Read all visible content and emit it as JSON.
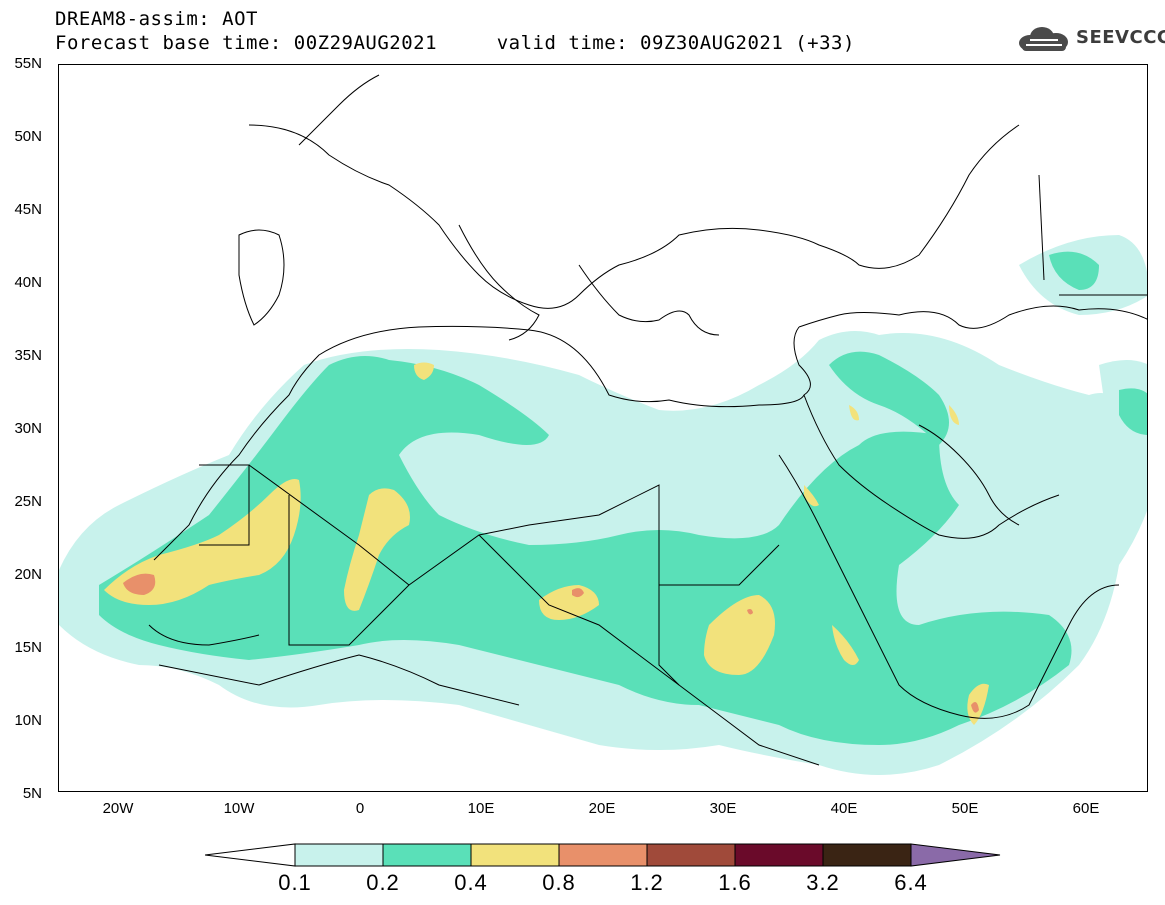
{
  "header": {
    "title_line1": "DREAM8-assim: AOT",
    "title_line2": "Forecast base time: 00Z29AUG2021     valid time: 09Z30AUG2021 (+33)",
    "logo_text": "SEEVCCC"
  },
  "map": {
    "lat_labels": [
      "55N",
      "50N",
      "45N",
      "40N",
      "35N",
      "30N",
      "25N",
      "20N",
      "15N",
      "10N",
      "5N"
    ],
    "lon_labels": [
      "20W",
      "10W",
      "0",
      "10E",
      "20E",
      "30E",
      "40E",
      "50E",
      "60E"
    ],
    "colors": {
      "c01": "#c8f2ec",
      "c02": "#5ae0b8",
      "c04": "#f2e27c",
      "c08": "#e8906a",
      "c12": "#a04a3a",
      "c16": "#6a0a2a",
      "c32": "#3a2414",
      "c64": "#8a6aa8",
      "border": "#000000"
    }
  },
  "colorbar": {
    "labels": [
      "0.1",
      "0.2",
      "0.4",
      "0.8",
      "1.2",
      "1.6",
      "3.2",
      "6.4"
    ]
  }
}
